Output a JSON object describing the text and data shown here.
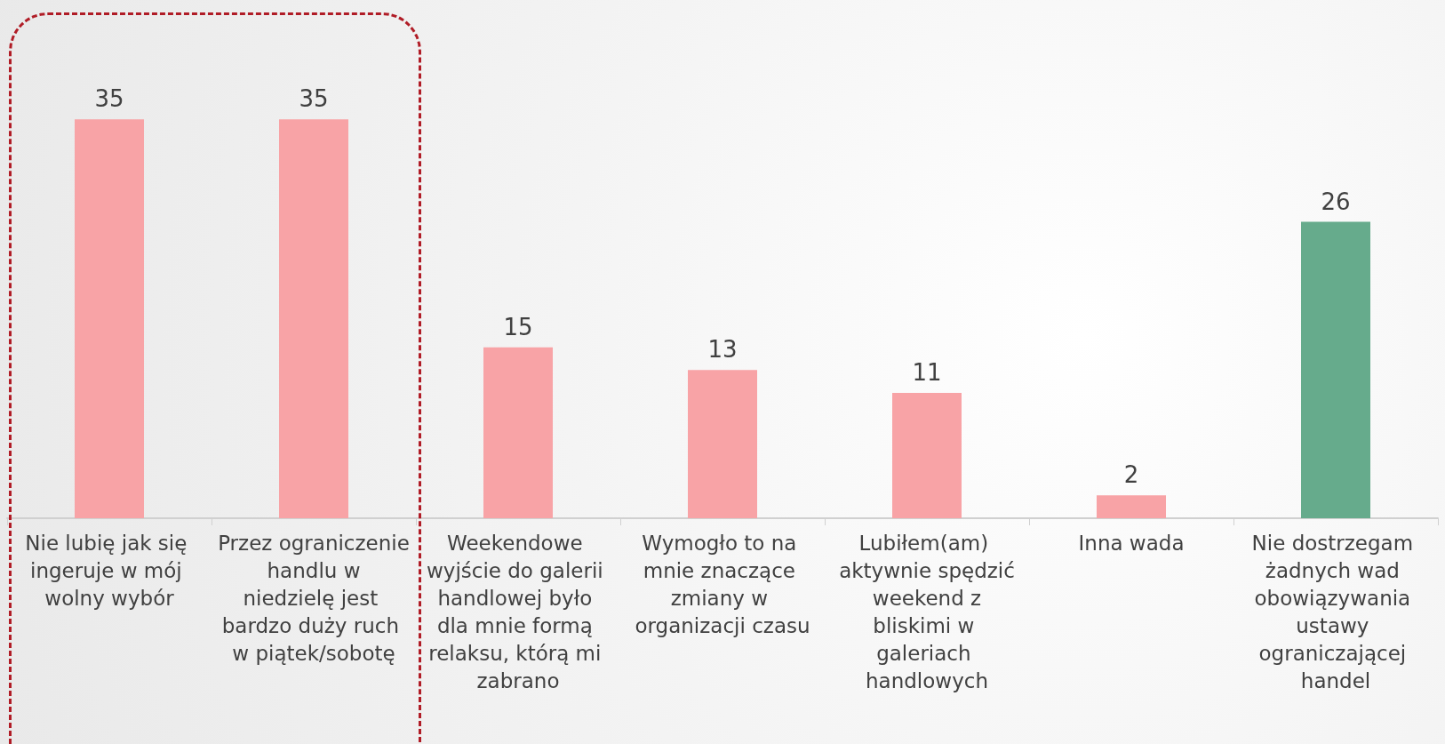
{
  "chart_data": {
    "type": "bar",
    "categories": [
      "Nie lubię jak się ingeruje w mój wolny wybór",
      "Przez ograniczenie handlu w niedzielę jest bardzo duży ruch w piątek/sobotę",
      "Weekendowe wyjście do galerii handlowej było dla mnie formą relaksu, którą mi zabrano",
      "Wymogło to na mnie znaczące zmiany w organizacji czasu",
      "Lubiłem(am) aktywnie spędzić weekend z bliskimi w galeriach handlowych",
      "Inna wada",
      "Nie dostrzegam żadnych wad obowiązywania ustawy ograniczającej handel"
    ],
    "values": [
      35,
      35,
      15,
      13,
      11,
      2,
      26
    ],
    "colors": [
      "#f8a3a6",
      "#f8a3a6",
      "#f8a3a6",
      "#f8a3a6",
      "#f8a3a6",
      "#f8a3a6",
      "#66ab8c"
    ],
    "data_labels": true
  }
}
